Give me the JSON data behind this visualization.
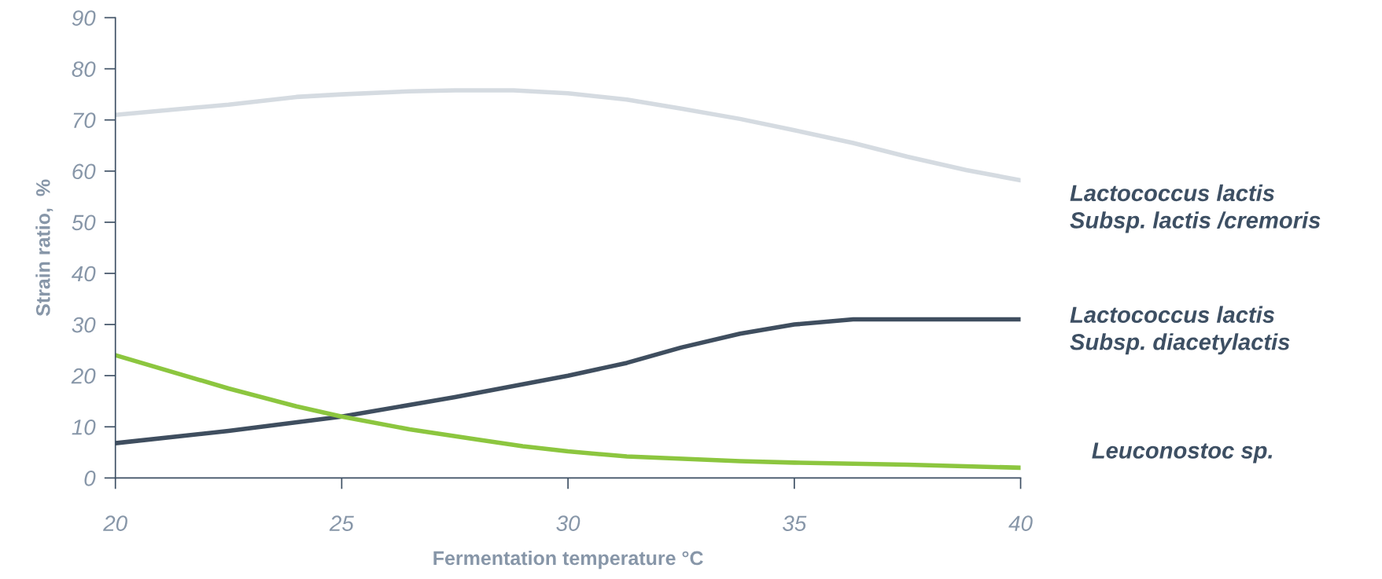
{
  "chart_data": {
    "type": "line",
    "xlabel": "Fermentation temperature °C",
    "ylabel": "Strain ratio,  %",
    "xlim": [
      20,
      40
    ],
    "xticks": [
      20,
      25,
      30,
      35,
      40
    ],
    "ylim": [
      0,
      90
    ],
    "yticks": [
      0,
      10,
      20,
      30,
      40,
      50,
      60,
      70,
      80,
      90
    ],
    "grid": false,
    "legend": false,
    "marker": "none",
    "line_style": "solid",
    "series": [
      {
        "name": "Lactococcus lactis\nSubsp. lactis /cremoris",
        "color": "#d5dbe1",
        "x": [
          20,
          22.5,
          24,
          25,
          26.5,
          27.5,
          28.8,
          30,
          31.3,
          32.5,
          33.8,
          35,
          36.3,
          37.5,
          38.8,
          40
        ],
        "values": [
          71,
          73,
          74.5,
          75,
          75.6,
          75.8,
          75.8,
          75.2,
          74,
          72.2,
          70.2,
          68,
          65.5,
          62.8,
          60.2,
          58.2
        ]
      },
      {
        "name": "Lactococcus lactis\nSubsp. diacetylactis",
        "color": "#3f4e5f",
        "x": [
          20,
          22.5,
          25,
          27.5,
          30,
          31.3,
          32.5,
          33.8,
          35,
          36.3,
          40
        ],
        "values": [
          6.8,
          9.2,
          12,
          15.8,
          20,
          22.5,
          25.5,
          28.2,
          30,
          31,
          31
        ]
      },
      {
        "name": "Leuconostoc sp.",
        "color": "#8cc63f",
        "x": [
          20,
          22.5,
          24,
          25,
          26.5,
          28,
          29,
          30,
          31.3,
          33.8,
          35,
          37.5,
          40
        ],
        "values": [
          24,
          17.5,
          14,
          12,
          9.5,
          7.5,
          6.2,
          5.2,
          4.2,
          3.3,
          3,
          2.6,
          2
        ]
      }
    ]
  }
}
